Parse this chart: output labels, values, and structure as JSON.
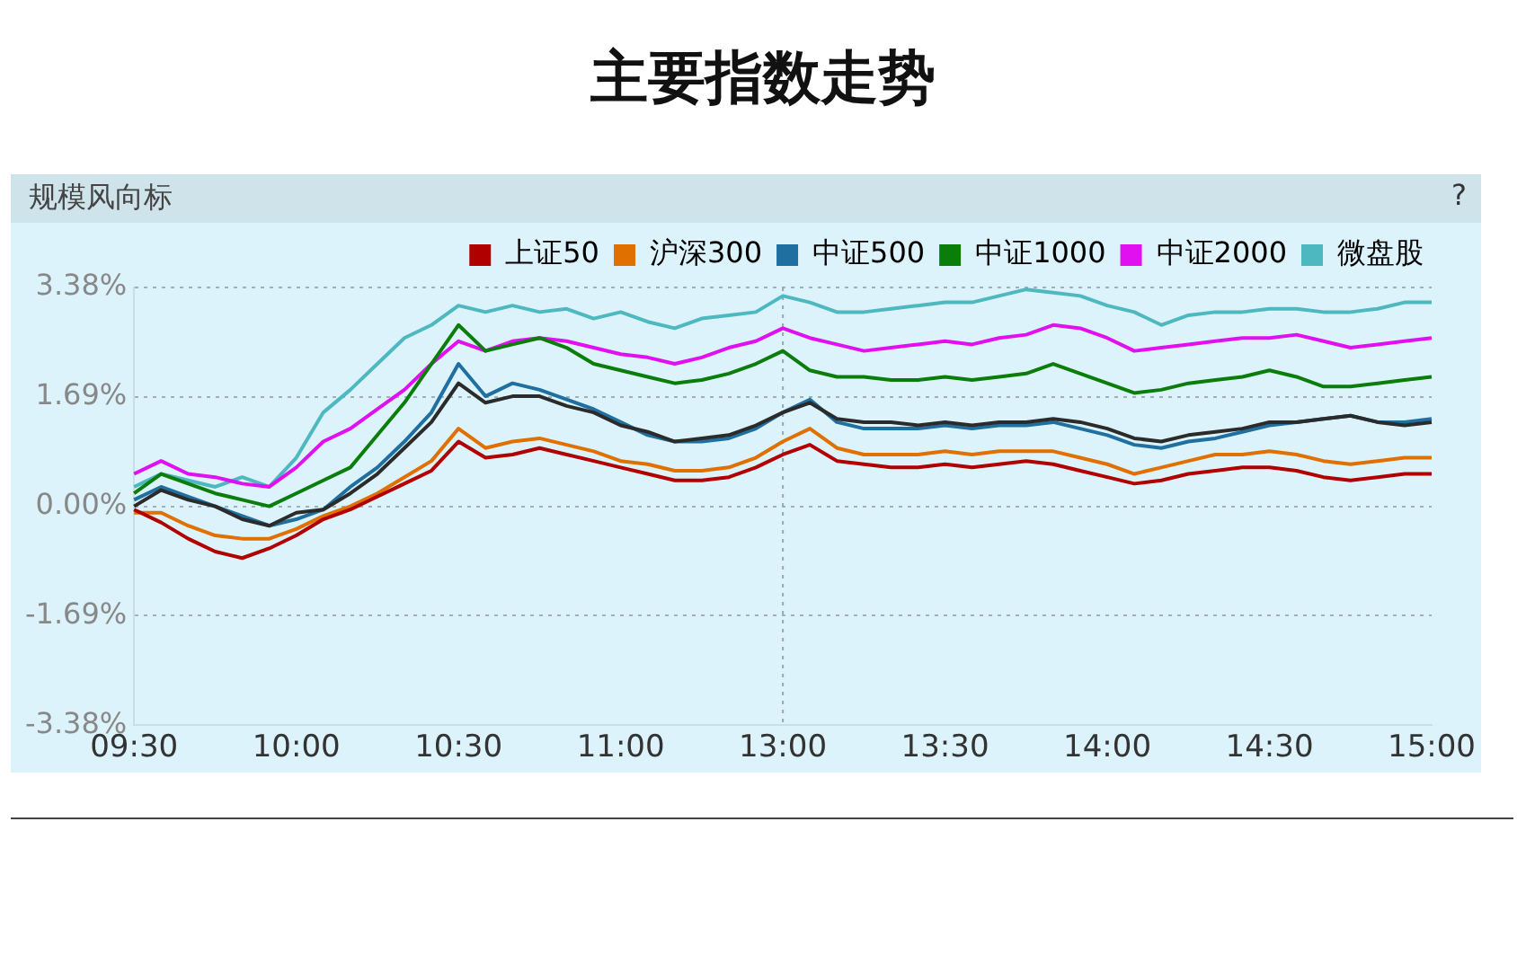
{
  "chart_data": {
    "type": "line",
    "title": "主要指数走势",
    "subtitle": "规模风向标",
    "categories": [
      "09:30",
      null,
      null,
      null,
      null,
      null,
      "10:00",
      null,
      null,
      null,
      null,
      null,
      "10:30",
      null,
      null,
      null,
      null,
      null,
      "11:00",
      null,
      null,
      null,
      null,
      null,
      "13:00",
      null,
      null,
      null,
      null,
      null,
      "13:30",
      null,
      null,
      null,
      null,
      null,
      "14:00",
      null,
      null,
      null,
      null,
      null,
      "14:30",
      null,
      null,
      null,
      null,
      null,
      "15:00"
    ],
    "ylim": [
      -3.38,
      3.38
    ],
    "yticks": [
      {
        "value": -3.38,
        "label": "-3.38%"
      },
      {
        "value": -1.69,
        "label": "-1.69%"
      },
      {
        "value": 0,
        "label": "0.00%"
      },
      {
        "value": 1.69,
        "label": "1.69%"
      },
      {
        "value": 3.38,
        "label": "3.38%"
      }
    ],
    "annotations": [
      "?"
    ],
    "grid": "y",
    "legend": "top right",
    "marker": "none",
    "line_style": "solid",
    "ref_lines": [
      {
        "axis": "x",
        "value": "13:00",
        "color": "#9aa7ad",
        "line_style": "dotted"
      }
    ],
    "series": [
      {
        "color": "#2b2b2b",
        "values": [
          0.0,
          0.25,
          0.1,
          0.0,
          -0.2,
          -0.3,
          -0.1,
          -0.05,
          0.2,
          0.5,
          0.9,
          1.3,
          1.9,
          1.6,
          1.7,
          1.7,
          1.55,
          1.45,
          1.25,
          1.15,
          1.0,
          1.05,
          1.1,
          1.25,
          1.45,
          1.6,
          1.35,
          1.3,
          1.3,
          1.25,
          1.3,
          1.25,
          1.3,
          1.3,
          1.35,
          1.3,
          1.2,
          1.05,
          1.0,
          1.1,
          1.15,
          1.2,
          1.3,
          1.3,
          1.35,
          1.4,
          1.3,
          1.25,
          1.3
        ]
      },
      {
        "name": "上证50",
        "color": "#b00000",
        "values": [
          -0.05,
          -0.25,
          -0.5,
          -0.7,
          -0.8,
          -0.65,
          -0.45,
          -0.2,
          -0.05,
          0.15,
          0.35,
          0.55,
          1.0,
          0.75,
          0.8,
          0.9,
          0.8,
          0.7,
          0.6,
          0.5,
          0.4,
          0.4,
          0.45,
          0.6,
          0.8,
          0.95,
          0.7,
          0.65,
          0.6,
          0.6,
          0.65,
          0.6,
          0.65,
          0.7,
          0.65,
          0.55,
          0.45,
          0.35,
          0.4,
          0.5,
          0.55,
          0.6,
          0.6,
          0.55,
          0.45,
          0.4,
          0.45,
          0.5,
          0.5
        ]
      },
      {
        "name": "沪深300",
        "color": "#e07000",
        "values": [
          -0.1,
          -0.1,
          -0.3,
          -0.45,
          -0.5,
          -0.5,
          -0.35,
          -0.15,
          0.0,
          0.2,
          0.45,
          0.7,
          1.2,
          0.9,
          1.0,
          1.05,
          0.95,
          0.85,
          0.7,
          0.65,
          0.55,
          0.55,
          0.6,
          0.75,
          1.0,
          1.2,
          0.9,
          0.8,
          0.8,
          0.8,
          0.85,
          0.8,
          0.85,
          0.85,
          0.85,
          0.75,
          0.65,
          0.5,
          0.6,
          0.7,
          0.8,
          0.8,
          0.85,
          0.8,
          0.7,
          0.65,
          0.7,
          0.75,
          0.75
        ]
      },
      {
        "name": "中证500",
        "color": "#1f6fa0",
        "values": [
          0.1,
          0.3,
          0.15,
          0.0,
          -0.15,
          -0.3,
          -0.2,
          -0.05,
          0.3,
          0.6,
          1.0,
          1.45,
          2.2,
          1.7,
          1.9,
          1.8,
          1.65,
          1.5,
          1.3,
          1.1,
          1.0,
          1.0,
          1.05,
          1.2,
          1.45,
          1.65,
          1.3,
          1.2,
          1.2,
          1.2,
          1.25,
          1.2,
          1.25,
          1.25,
          1.3,
          1.2,
          1.1,
          0.95,
          0.9,
          1.0,
          1.05,
          1.15,
          1.25,
          1.3,
          1.35,
          1.4,
          1.3,
          1.3,
          1.35
        ]
      },
      {
        "name": "中证1000",
        "color": "#0a7d0a",
        "values": [
          0.2,
          0.5,
          0.35,
          0.2,
          0.1,
          0.0,
          0.2,
          0.4,
          0.6,
          1.1,
          1.6,
          2.2,
          2.8,
          2.4,
          2.5,
          2.6,
          2.45,
          2.2,
          2.1,
          2.0,
          1.9,
          1.95,
          2.05,
          2.2,
          2.4,
          2.1,
          2.0,
          2.0,
          1.95,
          1.95,
          2.0,
          1.95,
          2.0,
          2.05,
          2.2,
          2.05,
          1.9,
          1.75,
          1.8,
          1.9,
          1.95,
          2.0,
          2.1,
          2.0,
          1.85,
          1.85,
          1.9,
          1.95,
          2.0
        ]
      },
      {
        "name": "中证2000",
        "color": "#e010f0",
        "values": [
          0.5,
          0.7,
          0.5,
          0.45,
          0.35,
          0.3,
          0.6,
          1.0,
          1.2,
          1.5,
          1.8,
          2.2,
          2.55,
          2.4,
          2.55,
          2.6,
          2.55,
          2.45,
          2.35,
          2.3,
          2.2,
          2.3,
          2.45,
          2.55,
          2.75,
          2.6,
          2.5,
          2.4,
          2.45,
          2.5,
          2.55,
          2.5,
          2.6,
          2.65,
          2.8,
          2.75,
          2.6,
          2.4,
          2.45,
          2.5,
          2.55,
          2.6,
          2.6,
          2.65,
          2.55,
          2.45,
          2.5,
          2.55,
          2.6
        ]
      },
      {
        "name": "微盘股",
        "color": "#4db8c0",
        "values": [
          0.3,
          0.5,
          0.4,
          0.3,
          0.45,
          0.3,
          0.75,
          1.45,
          1.8,
          2.2,
          2.6,
          2.8,
          3.1,
          3.0,
          3.1,
          3.0,
          3.05,
          2.9,
          3.0,
          2.85,
          2.75,
          2.9,
          2.95,
          3.0,
          3.25,
          3.15,
          3.0,
          3.0,
          3.05,
          3.1,
          3.15,
          3.15,
          3.25,
          3.35,
          3.3,
          3.25,
          3.1,
          3.0,
          2.8,
          2.95,
          3.0,
          3.0,
          3.05,
          3.05,
          3.0,
          3.0,
          3.05,
          3.15,
          3.15
        ]
      }
    ]
  }
}
